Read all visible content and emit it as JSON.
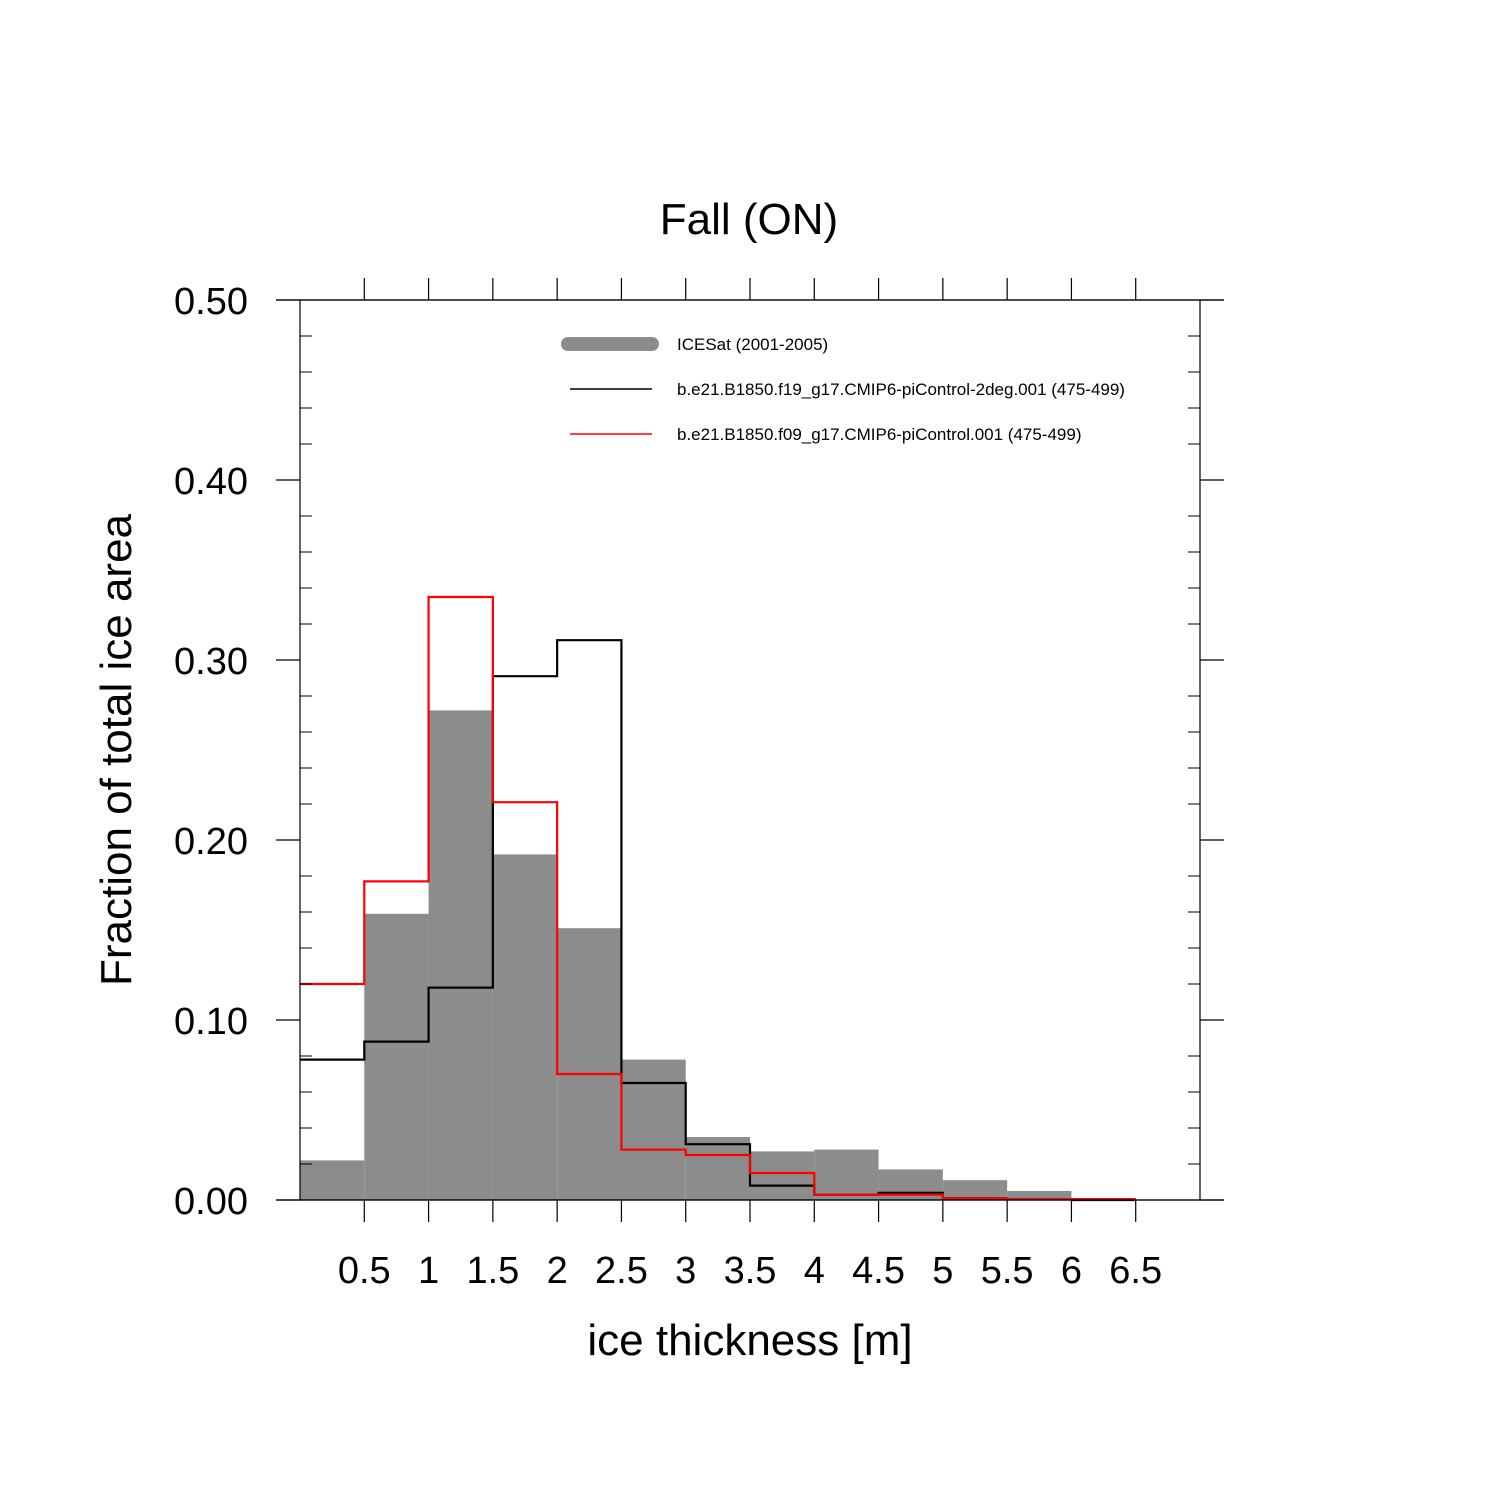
{
  "chart_data": {
    "type": "bar",
    "title": "Fall (ON)",
    "xlabel": "ice thickness [m]",
    "ylabel": "Fraction of total ice area",
    "xlim": [
      0,
      7
    ],
    "ylim": [
      0,
      0.5
    ],
    "bin_edges": [
      0,
      0.5,
      1,
      1.5,
      2,
      2.5,
      3,
      3.5,
      4,
      4.5,
      5,
      5.5,
      6,
      6.5
    ],
    "x_ticks": [
      "0.5",
      "1",
      "1.5",
      "2",
      "2.5",
      "3",
      "3.5",
      "4",
      "4.5",
      "5",
      "5.5",
      "6",
      "6.5"
    ],
    "x_tick_values": [
      0.5,
      1,
      1.5,
      2,
      2.5,
      3,
      3.5,
      4,
      4.5,
      5,
      5.5,
      6,
      6.5
    ],
    "y_ticks": [
      "0.00",
      "0.10",
      "0.20",
      "0.30",
      "0.40",
      "0.50"
    ],
    "y_tick_values": [
      0,
      0.1,
      0.2,
      0.3,
      0.4,
      0.5
    ],
    "grid": false,
    "legend_position": "top-right",
    "series": [
      {
        "name": "ICESat (2001-2005)",
        "style": "filled",
        "color": "#8c8c8c",
        "values": [
          0.022,
          0.159,
          0.272,
          0.192,
          0.151,
          0.078,
          0.035,
          0.027,
          0.028,
          0.017,
          0.011,
          0.005,
          0.0
        ]
      },
      {
        "name": "b.e21.B1850.f19_g17.CMIP6-piControl-2deg.001 (475-499)",
        "style": "step",
        "color": "#000000",
        "values": [
          0.078,
          0.088,
          0.118,
          0.291,
          0.311,
          0.065,
          0.031,
          0.008,
          0.003,
          0.004,
          0.001,
          0.0005,
          0.0
        ]
      },
      {
        "name": "b.e21.B1850.f09_g17.CMIP6-piControl.001 (475-499)",
        "style": "step",
        "color": "#ff0000",
        "values": [
          0.12,
          0.177,
          0.335,
          0.221,
          0.07,
          0.028,
          0.025,
          0.015,
          0.003,
          0.003,
          0.001,
          0.0005,
          0.0005
        ]
      }
    ]
  }
}
